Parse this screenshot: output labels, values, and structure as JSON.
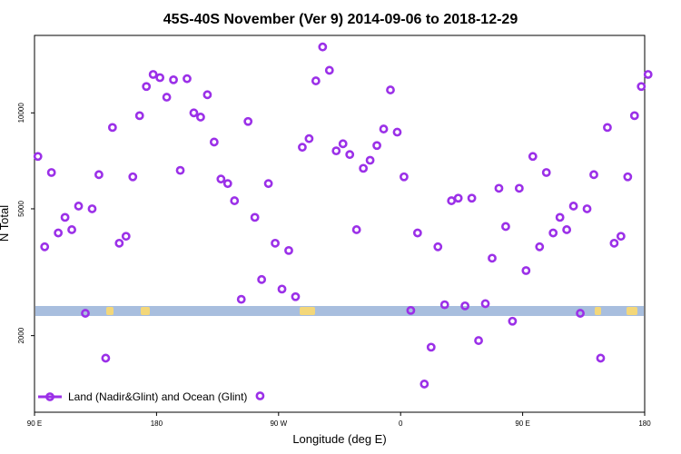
{
  "chart_data": {
    "type": "scatter",
    "title": "45S-40S November (Ver 9)   2014-09-06 to 2018-12-29",
    "xlabel": "Longitude (deg E)",
    "ylabel": "N Total",
    "x_ticks": [
      {
        "value": 90,
        "label": "90 E"
      },
      {
        "value": 180,
        "label": "180"
      },
      {
        "value": 270,
        "label": "90 W"
      },
      {
        "value": 360,
        "label": "0"
      },
      {
        "value": 450,
        "label": "90 E"
      },
      {
        "value": 540,
        "label": "180"
      }
    ],
    "y_ticks": [
      {
        "value": 2000,
        "label": "2000"
      },
      {
        "value": 5000,
        "label": "5000"
      },
      {
        "value": 10000,
        "label": "10000"
      }
    ],
    "xlim": [
      90,
      540
    ],
    "ylim": [
      1150,
      17500
    ],
    "y_scale": "log",
    "grid": false,
    "legend_position": "bottom-left",
    "colors": {
      "series": "#9b30e8",
      "ocean": "#a8bede",
      "land": "#f3d77a"
    },
    "series": [
      {
        "name": "Land (Nadir&Glint) and Ocean (Glint)",
        "points": [
          [
            92.5,
            7300
          ],
          [
            97.5,
            3800
          ],
          [
            102.5,
            6500
          ],
          [
            107.5,
            4200
          ],
          [
            112.5,
            4700
          ],
          [
            117.5,
            4300
          ],
          [
            122.5,
            5100
          ],
          [
            127.5,
            2350
          ],
          [
            132.5,
            5000
          ],
          [
            137.5,
            6400
          ],
          [
            142.5,
            1700
          ],
          [
            147.5,
            9000
          ],
          [
            152.5,
            3900
          ],
          [
            157.5,
            4100
          ],
          [
            162.5,
            6300
          ],
          [
            167.5,
            9800
          ],
          [
            172.5,
            12100
          ],
          [
            177.5,
            13200
          ],
          [
            182.5,
            12900
          ],
          [
            187.5,
            11200
          ],
          [
            192.5,
            12700
          ],
          [
            197.5,
            6600
          ],
          [
            202.5,
            12800
          ],
          [
            207.5,
            10000
          ],
          [
            212.5,
            9700
          ],
          [
            217.5,
            11400
          ],
          [
            222.5,
            8100
          ],
          [
            227.5,
            6200
          ],
          [
            232.5,
            6000
          ],
          [
            237.5,
            5300
          ],
          [
            242.5,
            2600
          ],
          [
            247.5,
            9400
          ],
          [
            252.5,
            4700
          ],
          [
            257.5,
            3000
          ],
          [
            262.5,
            6000
          ],
          [
            267.5,
            3900
          ],
          [
            272.5,
            2800
          ],
          [
            277.5,
            3700
          ],
          [
            282.5,
            2650
          ],
          [
            287.5,
            7800
          ],
          [
            292.5,
            8300
          ],
          [
            297.5,
            12600
          ],
          [
            302.5,
            16100
          ],
          [
            307.5,
            13600
          ],
          [
            312.5,
            7600
          ],
          [
            317.5,
            8000
          ],
          [
            322.5,
            7400
          ],
          [
            327.5,
            4300
          ],
          [
            332.5,
            6700
          ],
          [
            337.5,
            7100
          ],
          [
            342.5,
            7900
          ],
          [
            347.5,
            8900
          ],
          [
            352.5,
            11800
          ],
          [
            357.5,
            8700
          ],
          [
            362.5,
            6300
          ],
          [
            367.5,
            2400
          ],
          [
            372.5,
            4200
          ],
          [
            377.5,
            1410
          ],
          [
            382.5,
            1840
          ],
          [
            387.5,
            3800
          ],
          [
            392.5,
            2500
          ],
          [
            397.5,
            5300
          ],
          [
            402.5,
            5400
          ],
          [
            407.5,
            2480
          ],
          [
            412.5,
            5400
          ],
          [
            417.5,
            1930
          ],
          [
            422.5,
            2520
          ],
          [
            427.5,
            3500
          ],
          [
            432.5,
            5800
          ],
          [
            437.5,
            4400
          ],
          [
            442.5,
            2220
          ],
          [
            447.5,
            5800
          ],
          [
            452.5,
            3200
          ],
          [
            457.5,
            7300
          ],
          [
            462.5,
            3800
          ],
          [
            467.5,
            6500
          ],
          [
            472.5,
            4200
          ],
          [
            477.5,
            4700
          ],
          [
            482.5,
            4300
          ],
          [
            487.5,
            5100
          ],
          [
            492.5,
            2350
          ],
          [
            497.5,
            5000
          ],
          [
            502.5,
            6400
          ],
          [
            507.5,
            1700
          ],
          [
            512.5,
            9000
          ],
          [
            517.5,
            3900
          ],
          [
            522.5,
            4100
          ],
          [
            527.5,
            6300
          ],
          [
            532.5,
            9800
          ],
          [
            537.5,
            12100
          ],
          [
            542.5,
            13200
          ]
        ]
      }
    ]
  }
}
